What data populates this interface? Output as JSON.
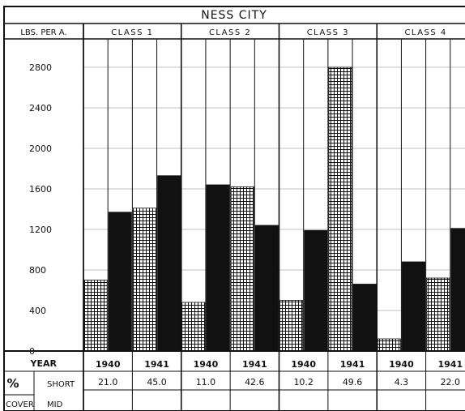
{
  "chart_data": {
    "type": "bar",
    "title": "NESS CITY",
    "ylabel": "LBS. PER A.",
    "ylim": [
      0,
      3000
    ],
    "yticks": [
      0,
      400,
      800,
      1200,
      1600,
      2000,
      2400,
      2800
    ],
    "grid": true,
    "classes": [
      "CLASS 1",
      "CLASS 2",
      "CLASS 3",
      "CLASS 4"
    ],
    "year_row_label": "YEAR",
    "years": [
      "1940",
      "1941",
      "1940",
      "1941",
      "1940",
      "1941",
      "1940",
      "1941"
    ],
    "pct_symbol": "%",
    "cover_label": "COVER",
    "short_label": "SHORT",
    "mid_label": "MID",
    "short_values": [
      "21.0",
      "45.0",
      "11.0",
      "42.6",
      "10.2",
      "49.6",
      "4.3",
      "22.0"
    ],
    "bars": [
      {
        "values": [
          700,
          1370
        ],
        "fills": [
          "crosshatch",
          "solid"
        ]
      },
      {
        "values": [
          1410,
          1730
        ],
        "fills": [
          "crosshatch",
          "solid"
        ]
      },
      {
        "values": [
          480,
          1640
        ],
        "fills": [
          "crosshatch",
          "solid"
        ]
      },
      {
        "values": [
          1620,
          1240
        ],
        "fills": [
          "crosshatch",
          "solid"
        ]
      },
      {
        "values": [
          500,
          1190
        ],
        "fills": [
          "crosshatch",
          "solid"
        ]
      },
      {
        "values": [
          2800,
          660
        ],
        "fills": [
          "crosshatch",
          "solid"
        ]
      },
      {
        "values": [
          120,
          880
        ],
        "fills": [
          "crosshatch",
          "solid"
        ]
      },
      {
        "values": [
          720,
          1210
        ],
        "fills": [
          "crosshatch",
          "solid"
        ]
      }
    ],
    "colors": {
      "ink": "#111111",
      "paper": "#ffffff"
    }
  }
}
